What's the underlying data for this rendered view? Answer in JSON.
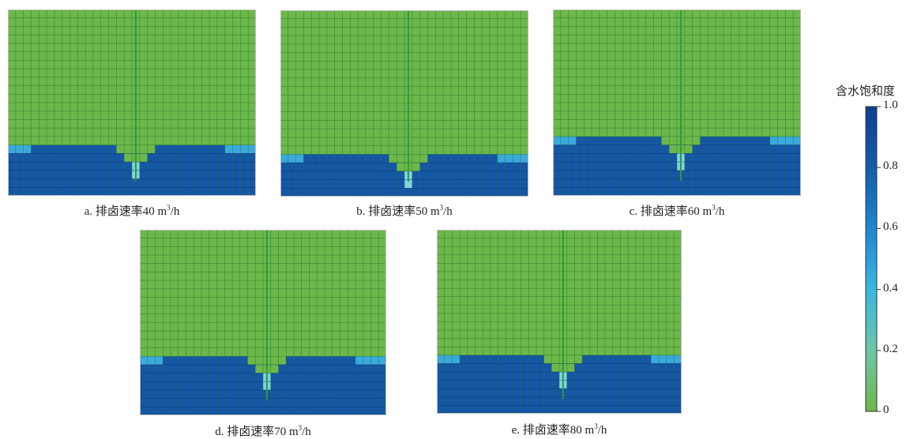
{
  "panels": [
    {
      "id": "a",
      "label": "a. 排卤速率40 m",
      "unit_sup": "3",
      "unit_tail": "/h",
      "rate": 40
    },
    {
      "id": "b",
      "label": "b. 排卤速率50 m",
      "unit_sup": "3",
      "unit_tail": "/h",
      "rate": 50
    },
    {
      "id": "c",
      "label": "c. 排卤速率60 m",
      "unit_sup": "3",
      "unit_tail": "/h",
      "rate": 60
    },
    {
      "id": "d",
      "label": "d. 排卤速率70 m",
      "unit_sup": "3",
      "unit_tail": "/h",
      "rate": 70
    },
    {
      "id": "e",
      "label": "e. 排卤速率80 m",
      "unit_sup": "3",
      "unit_tail": "/h",
      "rate": 80
    }
  ],
  "legend": {
    "title": "含水饱和度",
    "ticks": [
      "1.0",
      "0.8",
      "0.6",
      "0.4",
      "0.2",
      "0"
    ],
    "range": [
      0,
      1.0
    ]
  },
  "colors": {
    "oil": "#6db84a",
    "water": "#1556a6",
    "transition_light": "#7fd3e2",
    "transition_mid": "#3aa9dc",
    "grid": "#1e7a2c",
    "grid_water": "#0c3466",
    "well": "#2e9a3c"
  }
}
